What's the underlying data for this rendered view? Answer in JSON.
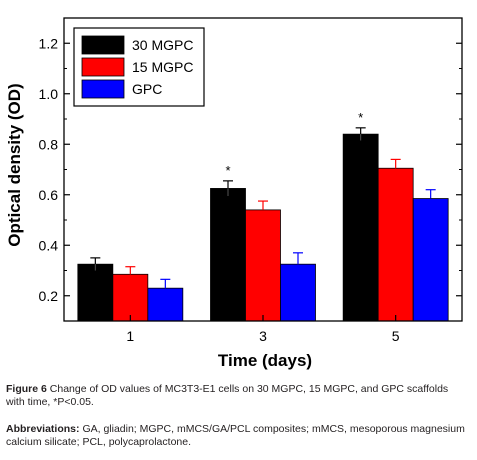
{
  "chart_data": {
    "type": "bar",
    "xlabel": "Time (days)",
    "ylabel": "Optical density (OD)",
    "categories": [
      "1",
      "3",
      "5"
    ],
    "ylim": [
      0.1,
      1.3
    ],
    "yticks": [
      0.2,
      0.4,
      0.6,
      0.8,
      1.0,
      1.2
    ],
    "ytick_labels": [
      "0.2",
      "0.4",
      "0.6",
      "0.8",
      "1.0",
      "1.2"
    ],
    "legend_position": "top-left",
    "series": [
      {
        "name": "30 MGPC",
        "color": "#000000",
        "values": [
          0.325,
          0.625,
          0.84
        ],
        "errors": [
          0.025,
          0.03,
          0.025
        ]
      },
      {
        "name": "15 MGPC",
        "color": "#ff0000",
        "values": [
          0.285,
          0.54,
          0.705
        ],
        "errors": [
          0.03,
          0.035,
          0.035
        ]
      },
      {
        "name": "GPC",
        "color": "#0000ff",
        "values": [
          0.23,
          0.325,
          0.585
        ],
        "errors": [
          0.035,
          0.045,
          0.035
        ]
      }
    ],
    "annotations": [
      {
        "text": "*",
        "category": "3",
        "series": "30 MGPC"
      },
      {
        "text": "*",
        "category": "5",
        "series": "30 MGPC"
      }
    ]
  },
  "caption": {
    "figure_label": "Figure 6",
    "figure_text": "Change of OD values of MC3T3-E1 cells on 30 MGPC, 15 MGPC, and GPC scaffolds with time, *P<0.05.",
    "abbrev_label": "Abbreviations:",
    "abbrev_text": "GA, gliadin; MGPC, mMCS/GA/PCL composites; mMCS, mesoporous magnesium calcium silicate; PCL, polycaprolactone."
  }
}
